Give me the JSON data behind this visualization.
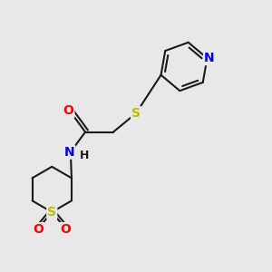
{
  "bg_color": "#e8e8e8",
  "bond_color": "#1a1a1a",
  "atom_colors": {
    "N": "#0000ee",
    "O": "#ff0000",
    "S": "#bbbb00",
    "C": "#1a1a1a",
    "H": "#1a1a1a"
  },
  "lw": 1.5,
  "fs": 9.5
}
